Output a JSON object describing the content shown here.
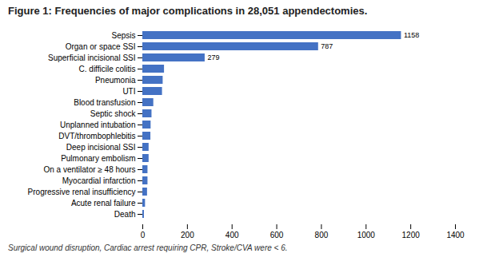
{
  "chart_data": {
    "type": "bar",
    "orientation": "horizontal",
    "title": "Figure 1: Frequencies of major complications in 28,051 appendectomies.",
    "categories": [
      "Sepsis",
      "Organ or space SSI",
      "Superficial incisional SSI",
      "C. difficile colitis",
      "Pneumonia",
      "UTI",
      "Blood transfusion",
      "Septic shock",
      "Unplanned intubation",
      "DVT/thrombophlebitis",
      "Deep incisional SSI",
      "Pulmonary embolism",
      "On a ventilator ≥ 48 hours",
      "Myocardial infarction",
      "Progressive renal insufficiency",
      "Acute renal failure",
      "Death"
    ],
    "values": [
      1158,
      787,
      279,
      97,
      91,
      88,
      49,
      41,
      37,
      36,
      28,
      28,
      23,
      23,
      21,
      12,
      7
    ],
    "value_labels": [
      "1158",
      "787",
      "279",
      null,
      null,
      null,
      null,
      null,
      null,
      null,
      null,
      null,
      null,
      null,
      null,
      null,
      null
    ],
    "color": "#4472c4",
    "xlim": [
      0,
      1400
    ],
    "xticks": [
      0,
      200,
      400,
      600,
      800,
      1000,
      1200,
      1400
    ],
    "grid": false,
    "annotations": [
      "Surgical wound disruption, Cardiac arrest requiring CPR, Stroke/CVA were < 6."
    ]
  }
}
